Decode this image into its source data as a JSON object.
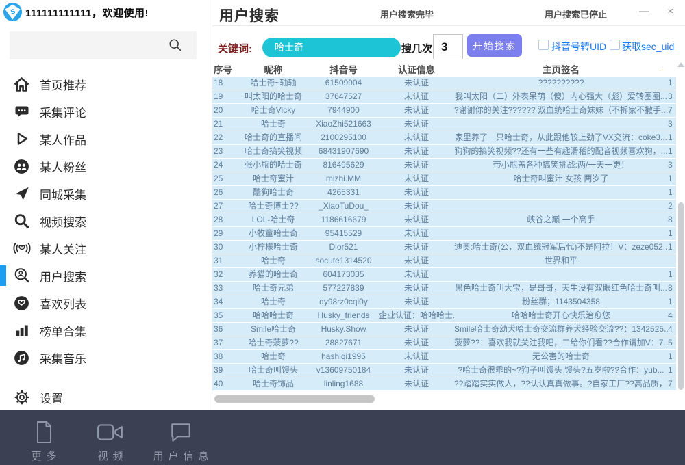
{
  "colors": {
    "accent_cyan": "#1cc4d5",
    "accent_purple": "#7c80ef",
    "link_blue": "#1d7cf2",
    "active_blue": "#1b9df2",
    "row_bg": "#d7ecf9",
    "bottombar_bg": "#3b4053",
    "keyword_label_red": "#7d1f1f",
    "logo_blue": "#2aa5ea"
  },
  "left_panel": {
    "welcome": "111111111111，欢迎使用!",
    "search_placeholder": ""
  },
  "titlebar": {
    "title": "用户搜索",
    "status_done": "用户搜索完毕",
    "status_stopped": "用户搜索已停止",
    "minimize_glyph": "—",
    "close_glyph": "×"
  },
  "sidebar": {
    "active_item": "用户搜索",
    "items": [
      {
        "label": "首页推荐",
        "icon": "home-icon"
      },
      {
        "label": "采集评论",
        "icon": "comment-icon"
      },
      {
        "label": "某人作品",
        "icon": "play-icon"
      },
      {
        "label": "某人粉丝",
        "icon": "fans-icon"
      },
      {
        "label": "同城采集",
        "icon": "navigation-icon"
      },
      {
        "label": "视频搜索",
        "icon": "search-icon"
      },
      {
        "label": "某人关注",
        "icon": "broadcast-heart-icon"
      },
      {
        "label": "用户搜索",
        "icon": "user-search-icon"
      },
      {
        "label": "喜欢列表",
        "icon": "heart-circle-icon"
      },
      {
        "label": "榜单合集",
        "icon": "bar-chart-icon"
      },
      {
        "label": "采集音乐",
        "icon": "music-circle-icon"
      }
    ],
    "settings_label": "设置",
    "settings_icon": "gear-icon"
  },
  "controls": {
    "keyword_label": "关键词:",
    "keyword_value": "哈士奇",
    "count_label": "搜几次:",
    "count_value": "3",
    "search_button": "开始搜索",
    "checkbox_uid": "抖音号转UID",
    "checkbox_secuid": "获取sec_uid"
  },
  "table": {
    "headers": [
      "序号",
      "昵称",
      "抖音号",
      "认证信息",
      "主页签名"
    ],
    "partial_header": ",",
    "rows": [
      {
        "no": "18",
        "nick": "哈士奇~轴轴",
        "id": "61509904",
        "verify": "未认证",
        "sign": "??????????",
        "edge": "1"
      },
      {
        "no": "19",
        "nick": "叫太阳的哈士奇",
        "id": "37647527",
        "verify": "未认证",
        "sign": "我叫太阳（二）外表呆萌（傻）内心强大（彪）爱转圈圈...",
        "edge": "3"
      },
      {
        "no": "20",
        "nick": "哈士奇Vicky",
        "id": "7944900",
        "verify": "未认证",
        "sign": "?谢谢你的关注?????? 双血统哈士奇妹妹（不拆家不撒手...",
        "edge": "7"
      },
      {
        "no": "21",
        "nick": "哈士奇",
        "id": "XiaoZhi521663",
        "verify": "未认证",
        "sign": "",
        "edge": "3"
      },
      {
        "no": "22",
        "nick": "哈士奇的直播间",
        "id": "2100295100",
        "verify": "未认证",
        "sign": "家里养了一只哈士奇，从此跟他较上劲了VX交流：coke3...",
        "edge": "1"
      },
      {
        "no": "23",
        "nick": "哈士奇搞笑视频",
        "id": "68431907690",
        "verify": "未认证",
        "sign": "狗狗的搞笑视频??还有一些有趣滑稽的配音视频喜欢狗，...",
        "edge": "1"
      },
      {
        "no": "24",
        "nick": "张小瓶的哈士奇",
        "id": "816495629",
        "verify": "未认证",
        "sign": "带小瓶盖各种搞笑挑战:两/一天一更！",
        "edge": "3"
      },
      {
        "no": "25",
        "nick": "哈士奇蜜汁",
        "id": "mizhi.MM",
        "verify": "未认证",
        "sign": "哈士奇叫蜜汁 女孩 两岁了",
        "edge": "1"
      },
      {
        "no": "26",
        "nick": "酷狗哈士奇",
        "id": "4265331",
        "verify": "未认证",
        "sign": "",
        "edge": "1"
      },
      {
        "no": "27",
        "nick": "哈士奇博士??",
        "id": "_XiaoTuDou_",
        "verify": "未认证",
        "sign": "",
        "edge": "2"
      },
      {
        "no": "28",
        "nick": "LOL-哈士奇",
        "id": "1186616679",
        "verify": "未认证",
        "sign": "峡谷之巅 一个高手",
        "edge": "8"
      },
      {
        "no": "29",
        "nick": "小牧童哈士奇",
        "id": "95415529",
        "verify": "未认证",
        "sign": "",
        "edge": "1"
      },
      {
        "no": "30",
        "nick": "小柠檬哈士奇",
        "id": "Dior521",
        "verify": "未认证",
        "sign": "迪奥:哈士奇(公，双血统冠军后代)不是阿拉！V：zeze052...",
        "edge": "1"
      },
      {
        "no": "31",
        "nick": "哈士奇",
        "id": "socute1314520",
        "verify": "未认证",
        "sign": "世界和平",
        "edge": ""
      },
      {
        "no": "32",
        "nick": "养猫的哈士奇",
        "id": "604173035",
        "verify": "未认证",
        "sign": "",
        "edge": "1"
      },
      {
        "no": "33",
        "nick": "哈士奇兄弟",
        "id": "577227839",
        "verify": "未认证",
        "sign": "黑色哈士奇叫大宝，是哥哥，天生没有双眼红色哈士奇叫...",
        "edge": "8"
      },
      {
        "no": "34",
        "nick": "哈士奇",
        "id": "dy98rz0cqi0y",
        "verify": "未认证",
        "sign": "粉丝群；1143504358",
        "edge": "1"
      },
      {
        "no": "35",
        "nick": "哈哈哈士奇",
        "id": "Husky_friends",
        "verify": "企业认证：哈哈哈士...",
        "sign": "哈哈哈士奇开心快乐治愈您",
        "edge": "4"
      },
      {
        "no": "36",
        "nick": "Smile哈士奇",
        "id": "Husky.Show",
        "verify": "未认证",
        "sign": "Smile哈士奇幼犬哈士奇交流群养犬经验交流??：1342525...",
        "edge": "4"
      },
      {
        "no": "37",
        "nick": "哈士奇菠萝??",
        "id": "28827671",
        "verify": "未认证",
        "sign": "菠萝??：喜欢我就关注我吧，二给你们看??合作请加V：7...",
        "edge": "5"
      },
      {
        "no": "38",
        "nick": "哈士奇",
        "id": "hashiqi1995",
        "verify": "未认证",
        "sign": "无公害的哈士奇",
        "edge": "1"
      },
      {
        "no": "39",
        "nick": "哈士奇叫馒头",
        "id": "v13609750184",
        "verify": "未认证",
        "sign": "?哈士奇很乖的~?狗子叫馒头 馒头?五岁啦??合作：yub...",
        "edge": "1"
      },
      {
        "no": "40",
        "nick": "哈士奇饰品",
        "id": "linling1688",
        "verify": "未认证",
        "sign": "??踏踏实实做人，??认认真真做事。?自家工厂??高品质，...",
        "edge": "7"
      }
    ]
  },
  "bottombar": {
    "items": [
      {
        "label": "更多",
        "icon": "file-icon"
      },
      {
        "label": "视频",
        "icon": "video-camera-icon"
      },
      {
        "label": "用户信息",
        "icon": "chat-bubble-icon"
      }
    ]
  }
}
